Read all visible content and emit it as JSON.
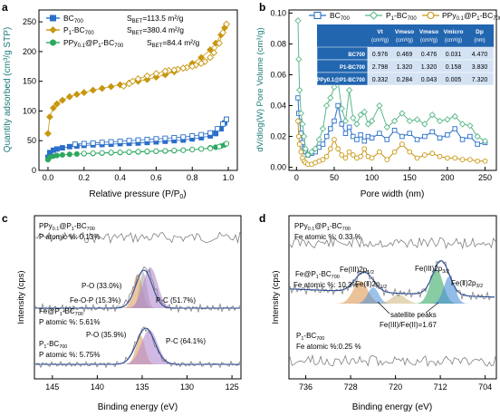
{
  "colors": {
    "bc700": "#2a6fc9",
    "p1bc700": "#c8960f",
    "ppy": "#2ea760",
    "green2": "#5cb88a",
    "tableHeader": "#2266b0",
    "tableBody": "#d4e3f4",
    "xps_gray": "#808080",
    "xps_fit": "#2a4e96",
    "peak_orange": "#e0a060",
    "peak_purple": "#b48ad0",
    "peak_green": "#3aa865",
    "peak_blue": "#4a8fd8",
    "axis": "#000000"
  },
  "panels": {
    "a": {
      "letter": "a",
      "legend": [
        {
          "label": "BC",
          "sub": "700",
          "bet": "S",
          "bet_sub": "BET",
          "bet_val": "=113.5 m²/g"
        },
        {
          "label": "P",
          "p_sub": "1",
          "rest": "-BC",
          "sub": "700",
          "bet": "S",
          "bet_sub": "BET",
          "bet_val": "=380.4 m²/g"
        },
        {
          "label": "PPy",
          "p_sub": "0.1",
          "rest": "@P",
          "p2_sub": "1",
          "rest2": "-BC",
          "sub": "700",
          "bet": "S",
          "bet_sub": "BET",
          "bet_val": "=84.4 m²/g"
        }
      ],
      "xlabel": "Relative pressure (P/P",
      "xlabel_sub": "0",
      "xlabel_end": ")",
      "ylabel": "Quantity adsorbed (cm³/g STP)",
      "xticks": [
        "0.0",
        "0.2",
        "0.4",
        "0.6",
        "0.8",
        "1.0"
      ],
      "yticks": [
        "0",
        "50",
        "100",
        "150",
        "200",
        "250"
      ]
    },
    "b": {
      "letter": "b",
      "legend": [
        "BC700",
        "P1-BC700",
        "PPy0.1@P1-BC700"
      ],
      "xlabel": "Pore width (nm)",
      "ylabel": "dV/dlog(W) Pore Volume (cm³/g)",
      "xticks": [
        "0",
        "50",
        "100",
        "150",
        "200",
        "250"
      ],
      "yticks": [
        "0.00",
        "0.02",
        "0.04",
        "0.06",
        "0.08",
        "0.10"
      ],
      "table": {
        "headers": [
          "Vt",
          "Vmeso",
          "Vmeso",
          "Vmicro",
          "Dp"
        ],
        "header_units": [
          "(cm³/g)",
          "(cm³/g)",
          "(cm³/g)",
          "(cm³/g)",
          "(nm)"
        ],
        "rows": [
          {
            "name": "BC700",
            "vals": [
              "0.976",
              "0.469",
              "0.476",
              "0.031",
              "4.470"
            ]
          },
          {
            "name": "P1-BC700",
            "vals": [
              "2.798",
              "1.320",
              "1.320",
              "0.158",
              "3.830"
            ]
          },
          {
            "name": "PPy0.1@P1-BC700",
            "vals": [
              "0.332",
              "0.284",
              "0.043",
              "0.005",
              "7.320"
            ]
          }
        ]
      }
    },
    "c": {
      "letter": "c",
      "xlabel": "Binding energy (eV)",
      "ylabel": "Intensity (cps)",
      "xticks": [
        "145",
        "140",
        "135",
        "130",
        "125"
      ],
      "labels": {
        "ppy_name": "PPy0.1@P1-BC700",
        "ppy_pct": "P atomic %: 0.13%",
        "fe_name": "Fe@P1-BC700",
        "fe_pct": "P atomic %: 5.61%",
        "po1": "P-O (33.0%)",
        "feop": "Fe-O-P (15.3%)",
        "pc1": "P-C (51.7%)",
        "p1_name": "P1-BC700",
        "p1_pct": "P atomic %: 5.75%",
        "po2": "P-O (35.9%)",
        "pc2": "P-C (64.1%)"
      }
    },
    "d": {
      "letter": "d",
      "xlabel": "Binding energy (eV)",
      "ylabel": "Intensity (cps)",
      "xticks": [
        "736",
        "728",
        "720",
        "712",
        "704"
      ],
      "labels": {
        "ppy_name": "PPy0.1@P1-BC700",
        "ppy_pct": "Fe atomic %: 0.33 %",
        "fe_name": "Fe@P1-BC700",
        "fe_pct": "Fe atomic %: 10.3%",
        "fe3_2p12": "Fe(III)2p1/2",
        "fe2_2p12": "Fe(II)2p1/2",
        "fe3_2p32": "Fe(III)2p3/2",
        "fe2_2p32": "Fe(II)2p3/2",
        "satellite": "satellite peaks",
        "ratio": "Fe(III)/Fe(II)=1.67",
        "p1_name": "P1-BC700",
        "p1_pct": "Fe atomic %:0.25 %"
      }
    }
  },
  "chart_data": [
    {
      "type": "scatter",
      "panel": "a",
      "xlabel": "Relative pressure (P/P0)",
      "ylabel": "Quantity adsorbed (cm3/g STP)",
      "xlim": [
        -0.05,
        1.05
      ],
      "ylim": [
        0,
        270
      ],
      "series": [
        {
          "name": "BC700",
          "adsorption": {
            "x": [
              0.0,
              0.01,
              0.03,
              0.05,
              0.08,
              0.12,
              0.16,
              0.2,
              0.25,
              0.3,
              0.35,
              0.4,
              0.45,
              0.5,
              0.55,
              0.6,
              0.65,
              0.7,
              0.75,
              0.8,
              0.85,
              0.9,
              0.93,
              0.96,
              0.98,
              0.99
            ],
            "y": [
              22,
              30,
              34,
              36,
              38,
              40,
              41,
              42,
              43,
              43.5,
              44,
              45,
              45.5,
              46,
              47,
              48,
              49,
              50,
              51,
              53,
              55,
              58,
              62,
              70,
              80,
              86
            ]
          },
          "desorption": {
            "x": [
              0.99,
              0.97,
              0.94,
              0.9,
              0.85,
              0.8,
              0.75,
              0.7,
              0.65,
              0.6,
              0.55,
              0.5,
              0.45,
              0.4,
              0.35,
              0.3,
              0.25,
              0.2,
              0.15
            ],
            "y": [
              86,
              78,
              70,
              63,
              60,
              58,
              56,
              55,
              54,
              53,
              52,
              51,
              50,
              49,
              48,
              47,
              46,
              45,
              44
            ]
          }
        },
        {
          "name": "P1-BC700",
          "adsorption": {
            "x": [
              0.0,
              0.01,
              0.03,
              0.05,
              0.08,
              0.12,
              0.16,
              0.2,
              0.25,
              0.3,
              0.35,
              0.4,
              0.45,
              0.5,
              0.55,
              0.6,
              0.65,
              0.7,
              0.75,
              0.8,
              0.85,
              0.9,
              0.93,
              0.96,
              0.98,
              0.99
            ],
            "y": [
              62,
              90,
              105,
              112,
              118,
              124,
              128,
              131,
              135,
              138,
              141,
              144,
              147,
              150,
              153,
              157,
              161,
              166,
              172,
              180,
              190,
              203,
              214,
              228,
              240,
              246
            ]
          },
          "desorption": {
            "x": [
              0.99,
              0.97,
              0.95,
              0.92,
              0.9,
              0.87,
              0.85,
              0.82,
              0.8,
              0.77,
              0.75,
              0.72,
              0.7,
              0.67,
              0.65,
              0.6,
              0.55,
              0.5,
              0.47,
              0.45,
              0.42
            ],
            "y": [
              246,
              232,
              214,
              198,
              190,
              183,
              180,
              177,
              175,
              173,
              172,
              170,
              169,
              168,
              167,
              163,
              159,
              154,
              150,
              146,
              142
            ]
          }
        },
        {
          "name": "PPy0.1@P1-BC700",
          "adsorption": {
            "x": [
              0.0,
              0.01,
              0.03,
              0.05,
              0.08,
              0.12,
              0.16,
              0.2,
              0.25,
              0.3,
              0.35,
              0.4,
              0.45,
              0.5,
              0.55,
              0.6,
              0.65,
              0.7,
              0.75,
              0.8,
              0.85,
              0.9,
              0.93,
              0.96,
              0.98,
              0.99
            ],
            "y": [
              18,
              22,
              24,
              25,
              26,
              27,
              27.5,
              28,
              28.5,
              29,
              29.5,
              30,
              30.5,
              31,
              31.5,
              32,
              32.5,
              33,
              34,
              35,
              36,
              38,
              39,
              41,
              43,
              45
            ]
          },
          "desorption": {
            "x": [
              0.99,
              0.95,
              0.9,
              0.85,
              0.8,
              0.75,
              0.7,
              0.65,
              0.6,
              0.55,
              0.5,
              0.45,
              0.4,
              0.35,
              0.3,
              0.25,
              0.2
            ],
            "y": [
              45,
              40,
              37,
              36,
              35,
              34,
              33.5,
              33,
              32.5,
              32,
              31.5,
              31,
              30.5,
              30,
              29.5,
              29,
              28.5
            ]
          }
        }
      ]
    },
    {
      "type": "line",
      "panel": "b",
      "xlabel": "Pore width (nm)",
      "ylabel": "dV/dlog(W) Pore Volume (cm3/g)",
      "xlim": [
        -10,
        265
      ],
      "ylim": [
        -0.002,
        0.102
      ],
      "series": [
        {
          "name": "BC700",
          "x": [
            2,
            3,
            4,
            6,
            8,
            10,
            12,
            15,
            20,
            25,
            30,
            35,
            40,
            45,
            50,
            55,
            60,
            65,
            70,
            75,
            80,
            85,
            90,
            95,
            100,
            110,
            120,
            130,
            140,
            150,
            160,
            170,
            180,
            190,
            200,
            210,
            220,
            230,
            240,
            250
          ],
          "y": [
            0.045,
            0.035,
            0.03,
            0.022,
            0.016,
            0.012,
            0.01,
            0.008,
            0.009,
            0.01,
            0.013,
            0.015,
            0.02,
            0.025,
            0.03,
            0.04,
            0.028,
            0.022,
            0.026,
            0.02,
            0.018,
            0.021,
            0.017,
            0.02,
            0.019,
            0.022,
            0.018,
            0.024,
            0.02,
            0.022,
            0.018,
            0.02,
            0.023,
            0.019,
            0.021,
            0.025,
            0.018,
            0.02,
            0.015,
            0.016
          ]
        },
        {
          "name": "P1-BC700",
          "x": [
            2,
            3,
            4,
            6,
            8,
            10,
            12,
            15,
            20,
            25,
            30,
            35,
            40,
            45,
            50,
            55,
            60,
            65,
            70,
            75,
            80,
            85,
            90,
            95,
            100,
            110,
            120,
            130,
            140,
            150,
            160,
            170,
            180,
            190,
            200,
            210,
            220,
            230,
            240,
            250
          ],
          "y": [
            0.095,
            0.07,
            0.05,
            0.035,
            0.028,
            0.02,
            0.012,
            0.008,
            0.01,
            0.012,
            0.018,
            0.025,
            0.04,
            0.045,
            0.052,
            0.056,
            0.038,
            0.03,
            0.05,
            0.032,
            0.028,
            0.034,
            0.036,
            0.028,
            0.03,
            0.04,
            0.026,
            0.03,
            0.035,
            0.03,
            0.031,
            0.028,
            0.034,
            0.03,
            0.031,
            0.033,
            0.028,
            0.027,
            0.02,
            0.017
          ]
        },
        {
          "name": "PPy0.1@P1-BC700",
          "x": [
            2,
            3,
            4,
            6,
            8,
            10,
            12,
            15,
            20,
            25,
            30,
            35,
            40,
            45,
            50,
            55,
            60,
            65,
            70,
            75,
            80,
            85,
            90,
            95,
            100,
            110,
            120,
            130,
            140,
            150,
            160,
            170,
            180,
            190,
            200,
            210,
            220,
            230,
            240,
            250
          ],
          "y": [
            0.03,
            0.02,
            0.015,
            0.01,
            0.006,
            0.004,
            0.003,
            0.002,
            0.002,
            0.003,
            0.004,
            0.005,
            0.007,
            0.012,
            0.018,
            0.012,
            0.008,
            0.006,
            0.01,
            0.008,
            0.006,
            0.007,
            0.012,
            0.007,
            0.006,
            0.01,
            0.005,
            0.01,
            0.015,
            0.01,
            0.006,
            0.008,
            0.009,
            0.007,
            0.006,
            0.006,
            0.005,
            0.005,
            0.004,
            0.004
          ]
        }
      ]
    }
  ]
}
